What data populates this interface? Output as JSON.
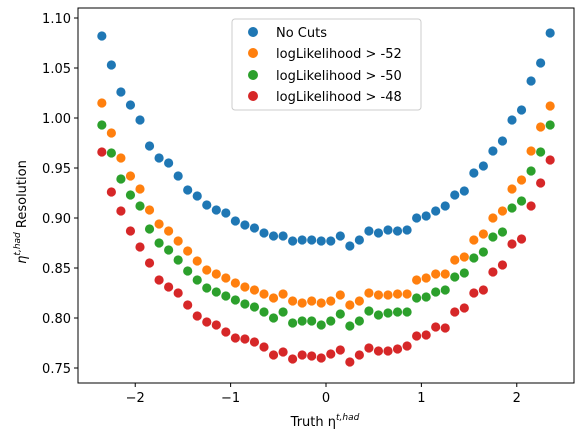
{
  "chart_data": {
    "type": "scatter",
    "title": "",
    "xlabel_main": "Truth η",
    "xlabel_sup": "t,had",
    "ylabel_main": "η",
    "ylabel_sup": "t,had",
    "ylabel_rest": " Resolution",
    "xlim": [
      -2.6,
      2.6
    ],
    "ylim": [
      0.735,
      1.11
    ],
    "xticks": [
      -2,
      -1,
      0,
      1,
      2
    ],
    "xtick_labels": [
      "−2",
      "−1",
      "0",
      "1",
      "2"
    ],
    "yticks": [
      0.75,
      0.8,
      0.85,
      0.9,
      0.95,
      1.0,
      1.05,
      1.1
    ],
    "ytick_labels": [
      "0.75",
      "0.80",
      "0.85",
      "0.90",
      "0.95",
      "1.00",
      "1.05",
      "1.10"
    ],
    "grid": false,
    "legend_position": "upper-center",
    "x": [
      -2.35,
      -2.25,
      -2.15,
      -2.05,
      -1.95,
      -1.85,
      -1.75,
      -1.65,
      -1.55,
      -1.45,
      -1.35,
      -1.25,
      -1.15,
      -1.05,
      -0.95,
      -0.85,
      -0.75,
      -0.65,
      -0.55,
      -0.45,
      -0.35,
      -0.25,
      -0.15,
      -0.05,
      0.05,
      0.15,
      0.25,
      0.35,
      0.45,
      0.55,
      0.65,
      0.75,
      0.85,
      0.95,
      1.05,
      1.15,
      1.25,
      1.35,
      1.45,
      1.55,
      1.65,
      1.75,
      1.85,
      1.95,
      2.05,
      2.15,
      2.25,
      2.35
    ],
    "series": [
      {
        "name": "No Cuts",
        "color": "#1f77b4",
        "values": [
          1.082,
          1.053,
          1.026,
          1.013,
          0.998,
          0.972,
          0.96,
          0.955,
          0.942,
          0.928,
          0.922,
          0.913,
          0.908,
          0.905,
          0.897,
          0.893,
          0.89,
          0.885,
          0.882,
          0.882,
          0.877,
          0.878,
          0.878,
          0.877,
          0.877,
          0.882,
          0.872,
          0.878,
          0.887,
          0.885,
          0.888,
          0.887,
          0.888,
          0.9,
          0.902,
          0.907,
          0.912,
          0.923,
          0.927,
          0.945,
          0.952,
          0.967,
          0.977,
          0.998,
          1.008,
          1.037,
          1.055,
          1.085
        ]
      },
      {
        "name": "logLikelihood > -52",
        "color": "#ff7f0e",
        "values": [
          1.015,
          0.985,
          0.96,
          0.942,
          0.929,
          0.908,
          0.894,
          0.887,
          0.877,
          0.867,
          0.857,
          0.848,
          0.844,
          0.84,
          0.835,
          0.831,
          0.828,
          0.824,
          0.82,
          0.824,
          0.817,
          0.815,
          0.817,
          0.815,
          0.817,
          0.823,
          0.813,
          0.817,
          0.825,
          0.823,
          0.823,
          0.824,
          0.824,
          0.838,
          0.84,
          0.844,
          0.844,
          0.858,
          0.861,
          0.878,
          0.884,
          0.9,
          0.907,
          0.929,
          0.938,
          0.967,
          0.991,
          1.012
        ]
      },
      {
        "name": "logLikelihood > -50",
        "color": "#2ca02c",
        "values": [
          0.993,
          0.965,
          0.939,
          0.923,
          0.912,
          0.889,
          0.875,
          0.868,
          0.858,
          0.847,
          0.838,
          0.83,
          0.826,
          0.822,
          0.818,
          0.814,
          0.811,
          0.806,
          0.8,
          0.806,
          0.795,
          0.797,
          0.797,
          0.793,
          0.797,
          0.804,
          0.792,
          0.797,
          0.807,
          0.803,
          0.805,
          0.806,
          0.806,
          0.82,
          0.821,
          0.826,
          0.828,
          0.841,
          0.845,
          0.86,
          0.866,
          0.881,
          0.886,
          0.91,
          0.917,
          0.947,
          0.966,
          0.993
        ]
      },
      {
        "name": "logLikelihood > -48",
        "color": "#d62728",
        "values": [
          0.966,
          0.926,
          0.907,
          0.887,
          0.871,
          0.855,
          0.838,
          0.831,
          0.825,
          0.813,
          0.802,
          0.796,
          0.793,
          0.786,
          0.78,
          0.779,
          0.776,
          0.771,
          0.763,
          0.766,
          0.759,
          0.763,
          0.762,
          0.76,
          0.764,
          0.768,
          0.756,
          0.763,
          0.77,
          0.767,
          0.767,
          0.769,
          0.772,
          0.782,
          0.783,
          0.791,
          0.79,
          0.806,
          0.81,
          0.825,
          0.828,
          0.846,
          0.853,
          0.874,
          0.879,
          0.912,
          0.935,
          0.958
        ]
      }
    ]
  }
}
